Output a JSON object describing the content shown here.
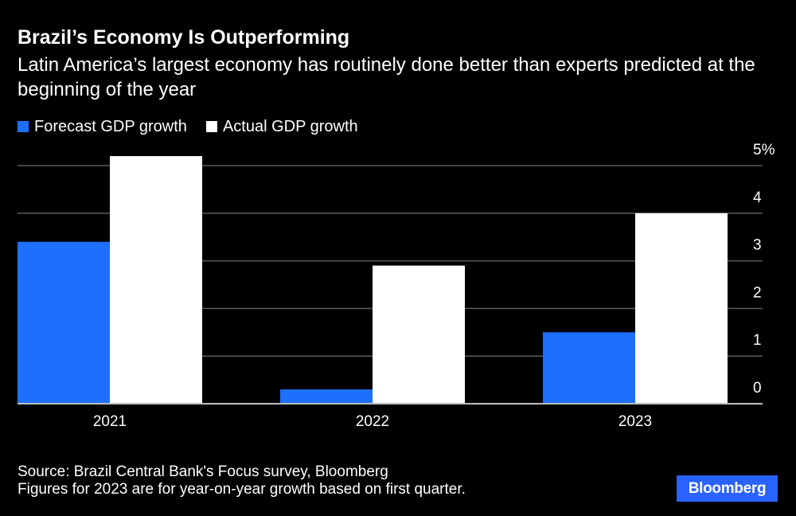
{
  "header": {
    "title": "Brazil’s Economy Is Outperforming",
    "subtitle": "Latin America’s largest economy has routinely done better than experts predicted at the beginning of the year"
  },
  "legend": {
    "items": [
      {
        "label": "Forecast GDP growth",
        "color": "#1f6fff"
      },
      {
        "label": "Actual GDP growth",
        "color": "#ffffff"
      }
    ]
  },
  "chart_data": {
    "type": "bar",
    "categories": [
      "2021",
      "2022",
      "2023"
    ],
    "series": [
      {
        "name": "Forecast GDP growth",
        "color": "#1f6fff",
        "values": [
          3.4,
          0.3,
          1.5
        ]
      },
      {
        "name": "Actual GDP growth",
        "color": "#ffffff",
        "values": [
          5.2,
          2.9,
          4.0
        ]
      }
    ],
    "ylim": [
      0,
      5
    ],
    "yticks": [
      0,
      1,
      2,
      3,
      4,
      5
    ],
    "ytick_labels": [
      "0",
      "1",
      "2",
      "3",
      "4",
      "5%"
    ],
    "y_axis_side": "right",
    "grid": true
  },
  "footer": {
    "source": "Source: Brazil Central Bank's Focus survey, Bloomberg",
    "note": "Figures for 2023 are for year-on-year growth based on first quarter."
  },
  "brand": {
    "label": "Bloomberg",
    "color": "#2962ff"
  }
}
